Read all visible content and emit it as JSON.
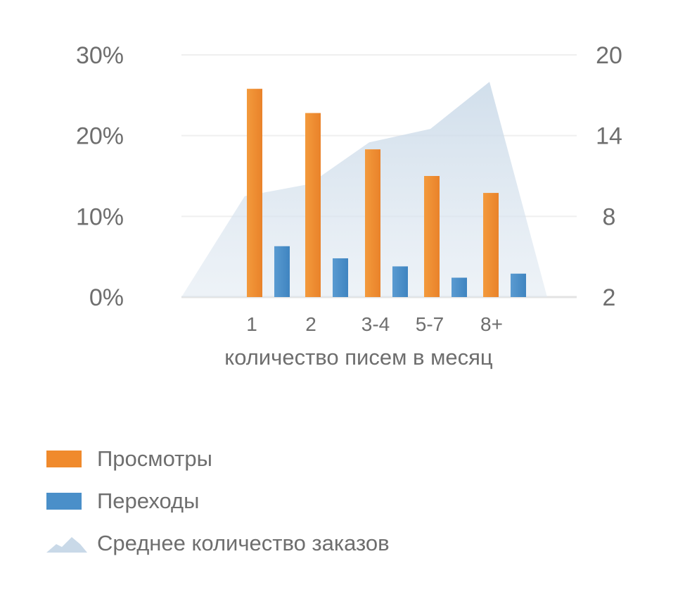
{
  "chart_data": {
    "type": "bar",
    "xlabel": "количество писем в месяц",
    "categories": [
      "1",
      "2",
      "3-4",
      "5-7",
      "8+"
    ],
    "series": [
      {
        "name": "Просмотры",
        "kind": "bar",
        "axis": "left",
        "color": "#f08a2c",
        "values": [
          25.8,
          22.8,
          18.3,
          15.0,
          12.9
        ]
      },
      {
        "name": "Переходы",
        "kind": "bar",
        "axis": "left",
        "color": "#4a8fc9",
        "values": [
          6.3,
          4.8,
          3.8,
          2.4,
          2.9
        ]
      },
      {
        "name": "Среднее количество заказов",
        "kind": "area",
        "axis": "right",
        "color": "#c9d9e8",
        "values": [
          9.5,
          10.4,
          13.5,
          14.5,
          18.0
        ]
      }
    ],
    "yaxis_left": {
      "ticks": [
        "0%",
        "10%",
        "20%",
        "30%"
      ],
      "range": [
        0,
        30
      ]
    },
    "yaxis_right": {
      "ticks": [
        "2",
        "8",
        "14",
        "20"
      ],
      "range": [
        2,
        20
      ]
    },
    "grid": true
  }
}
